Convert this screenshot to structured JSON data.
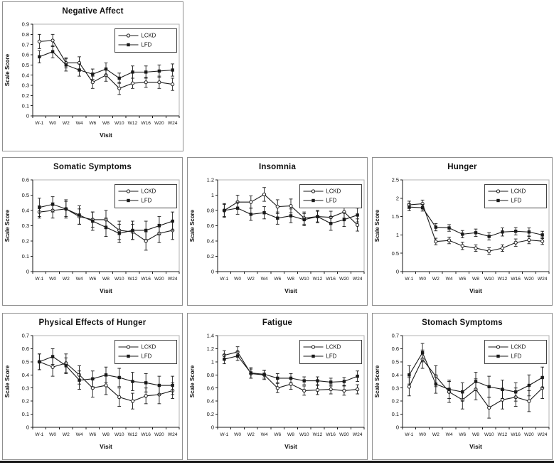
{
  "figure": {
    "xlabel": "Visit",
    "ylabel": "Scale Score",
    "categories": [
      "W-1",
      "W0",
      "W2",
      "W4",
      "W6",
      "W8",
      "W10",
      "W12",
      "W16",
      "W20",
      "W24"
    ],
    "legend_entries": [
      "LCKD",
      "LFD"
    ]
  },
  "colors": {
    "series_line": "#1a1a1a",
    "marker_open_fill": "#ffffff",
    "plot_border": "#b3b3b3",
    "axis": "#1a1a1a",
    "panel_border": "#8f8f8f",
    "bottom_rule": "#1a1a1a",
    "legend_border": "#444444"
  },
  "chart_data": [
    {
      "type": "line",
      "title": "Negative Affect",
      "xlabel": "Visit",
      "ylabel": "Scale Score",
      "categories": [
        "W-1",
        "W0",
        "W2",
        "W4",
        "W6",
        "W8",
        "W10",
        "W12",
        "W16",
        "W20",
        "W24"
      ],
      "ylim": [
        0,
        0.9
      ],
      "ytick_step": 0.1,
      "grid": false,
      "legend_position": "top-right",
      "series": [
        {
          "name": "LCKD",
          "marker": "open-circle",
          "values": [
            0.73,
            0.74,
            0.52,
            0.52,
            0.33,
            0.4,
            0.27,
            0.32,
            0.33,
            0.33,
            0.31
          ],
          "errors": [
            0.07,
            0.06,
            0.05,
            0.06,
            0.06,
            0.06,
            0.06,
            0.05,
            0.05,
            0.06,
            0.06
          ]
        },
        {
          "name": "LFD",
          "marker": "filled-square",
          "values": [
            0.58,
            0.63,
            0.5,
            0.45,
            0.41,
            0.46,
            0.37,
            0.43,
            0.43,
            0.44,
            0.45
          ],
          "errors": [
            0.06,
            0.06,
            0.06,
            0.06,
            0.05,
            0.06,
            0.05,
            0.06,
            0.06,
            0.06,
            0.06
          ]
        }
      ]
    },
    {
      "type": "line",
      "title": "Somatic Symptoms",
      "xlabel": "Visit",
      "ylabel": "Scale Score",
      "categories": [
        "W-1",
        "W0",
        "W2",
        "W4",
        "W6",
        "W8",
        "W10",
        "W12",
        "W16",
        "W20",
        "W24"
      ],
      "ylim": [
        0,
        0.6
      ],
      "ytick_step": 0.1,
      "grid": false,
      "legend_position": "top-right",
      "series": [
        {
          "name": "LCKD",
          "marker": "open-circle",
          "values": [
            0.39,
            0.4,
            0.41,
            0.36,
            0.34,
            0.34,
            0.27,
            0.26,
            0.2,
            0.25,
            0.27
          ],
          "errors": [
            0.04,
            0.05,
            0.05,
            0.05,
            0.05,
            0.06,
            0.06,
            0.05,
            0.06,
            0.06,
            0.06
          ]
        },
        {
          "name": "LFD",
          "marker": "filled-square",
          "values": [
            0.42,
            0.44,
            0.41,
            0.37,
            0.33,
            0.29,
            0.25,
            0.27,
            0.27,
            0.3,
            0.33
          ],
          "errors": [
            0.06,
            0.05,
            0.06,
            0.06,
            0.06,
            0.06,
            0.06,
            0.06,
            0.06,
            0.06,
            0.06
          ]
        }
      ]
    },
    {
      "type": "line",
      "title": "Insomnia",
      "xlabel": "Visit",
      "ylabel": "Scale Score",
      "categories": [
        "W-1",
        "W0",
        "W2",
        "W4",
        "W6",
        "W8",
        "W10",
        "W12",
        "W16",
        "W20",
        "W24"
      ],
      "ylim": [
        0,
        1.2
      ],
      "ytick_step": 0.2,
      "grid": false,
      "legend_position": "top-right",
      "series": [
        {
          "name": "LCKD",
          "marker": "open-circle",
          "values": [
            0.8,
            0.91,
            0.91,
            1.01,
            0.85,
            0.86,
            0.7,
            0.72,
            0.71,
            0.78,
            0.61
          ],
          "errors": [
            0.08,
            0.09,
            0.08,
            0.09,
            0.09,
            0.09,
            0.08,
            0.07,
            0.08,
            0.08,
            0.08
          ]
        },
        {
          "name": "LFD",
          "marker": "filled-square",
          "values": [
            0.8,
            0.83,
            0.75,
            0.77,
            0.7,
            0.73,
            0.68,
            0.72,
            0.63,
            0.68,
            0.74
          ],
          "errors": [
            0.09,
            0.08,
            0.08,
            0.08,
            0.08,
            0.09,
            0.08,
            0.08,
            0.09,
            0.09,
            0.09
          ]
        }
      ]
    },
    {
      "type": "line",
      "title": "Hunger",
      "xlabel": "Visit",
      "ylabel": "Scale Score",
      "categories": [
        "W-1",
        "W0",
        "W2",
        "W4",
        "W6",
        "W8",
        "W10",
        "W12",
        "W16",
        "W20",
        "W24"
      ],
      "ylim": [
        0,
        2.5
      ],
      "ytick_step": 0.5,
      "grid": false,
      "legend_position": "top-right",
      "series": [
        {
          "name": "LCKD",
          "marker": "open-circle",
          "values": [
            1.82,
            1.85,
            0.82,
            0.85,
            0.7,
            0.64,
            0.56,
            0.64,
            0.79,
            0.86,
            0.83
          ],
          "errors": [
            0.1,
            0.1,
            0.09,
            0.09,
            0.1,
            0.09,
            0.09,
            0.09,
            0.1,
            0.1,
            0.09
          ]
        },
        {
          "name": "LFD",
          "marker": "filled-square",
          "values": [
            1.76,
            1.74,
            1.21,
            1.19,
            1.02,
            1.06,
            0.96,
            1.08,
            1.1,
            1.08,
            1.0
          ],
          "errors": [
            0.1,
            0.09,
            0.1,
            0.09,
            0.1,
            0.1,
            0.1,
            0.11,
            0.1,
            0.11,
            0.1
          ]
        }
      ]
    },
    {
      "type": "line",
      "title": "Physical Effects of Hunger",
      "xlabel": "Visit",
      "ylabel": "Scale Score",
      "categories": [
        "W-1",
        "W0",
        "W2",
        "W4",
        "W6",
        "W8",
        "W10",
        "W12",
        "W16",
        "W20",
        "W24"
      ],
      "ylim": [
        0,
        0.7
      ],
      "ytick_step": 0.1,
      "grid": false,
      "legend_position": "top-right",
      "series": [
        {
          "name": "LCKD",
          "marker": "open-circle",
          "values": [
            0.5,
            0.46,
            0.49,
            0.4,
            0.3,
            0.32,
            0.23,
            0.2,
            0.24,
            0.25,
            0.28
          ],
          "errors": [
            0.06,
            0.07,
            0.07,
            0.07,
            0.07,
            0.07,
            0.07,
            0.06,
            0.06,
            0.07,
            0.06
          ]
        },
        {
          "name": "LFD",
          "marker": "filled-square",
          "values": [
            0.5,
            0.54,
            0.47,
            0.36,
            0.37,
            0.4,
            0.38,
            0.35,
            0.34,
            0.32,
            0.32
          ],
          "errors": [
            0.06,
            0.06,
            0.06,
            0.07,
            0.06,
            0.06,
            0.07,
            0.07,
            0.07,
            0.07,
            0.07
          ]
        }
      ]
    },
    {
      "type": "line",
      "title": "Fatigue",
      "xlabel": "Visit",
      "ylabel": "Scale Score",
      "categories": [
        "W-1",
        "W0",
        "W2",
        "W4",
        "W6",
        "W8",
        "W10",
        "W12",
        "W16",
        "W20",
        "W24"
      ],
      "ylim": [
        0,
        1.4
      ],
      "ytick_step": 0.2,
      "grid": false,
      "legend_position": "top-right",
      "series": [
        {
          "name": "LCKD",
          "marker": "open-circle",
          "values": [
            1.1,
            1.15,
            0.82,
            0.8,
            0.6,
            0.66,
            0.56,
            0.57,
            0.58,
            0.56,
            0.58
          ],
          "errors": [
            0.07,
            0.08,
            0.07,
            0.07,
            0.07,
            0.08,
            0.07,
            0.07,
            0.07,
            0.07,
            0.07
          ]
        },
        {
          "name": "LFD",
          "marker": "filled-square",
          "values": [
            1.04,
            1.09,
            0.83,
            0.81,
            0.75,
            0.75,
            0.71,
            0.71,
            0.69,
            0.7,
            0.78
          ],
          "errors": [
            0.07,
            0.07,
            0.08,
            0.06,
            0.07,
            0.07,
            0.06,
            0.06,
            0.06,
            0.06,
            0.08
          ]
        }
      ]
    },
    {
      "type": "line",
      "title": "Stomach Symptoms",
      "xlabel": "Visit",
      "ylabel": "Scale Score",
      "categories": [
        "W-1",
        "W0",
        "W2",
        "W4",
        "W6",
        "W8",
        "W10",
        "W12",
        "W16",
        "W20",
        "W24"
      ],
      "ylim": [
        0,
        0.7
      ],
      "ytick_step": 0.1,
      "grid": false,
      "legend_position": "top-right",
      "series": [
        {
          "name": "LCKD",
          "marker": "open-circle",
          "values": [
            0.31,
            0.52,
            0.39,
            0.27,
            0.21,
            0.29,
            0.15,
            0.21,
            0.23,
            0.2,
            0.3
          ],
          "errors": [
            0.07,
            0.07,
            0.08,
            0.08,
            0.07,
            0.08,
            0.08,
            0.07,
            0.07,
            0.08,
            0.08
          ]
        },
        {
          "name": "LFD",
          "marker": "filled-square",
          "values": [
            0.4,
            0.57,
            0.33,
            0.29,
            0.27,
            0.35,
            0.31,
            0.29,
            0.27,
            0.32,
            0.38
          ],
          "errors": [
            0.07,
            0.07,
            0.07,
            0.07,
            0.07,
            0.07,
            0.08,
            0.07,
            0.07,
            0.08,
            0.08
          ]
        }
      ]
    }
  ]
}
